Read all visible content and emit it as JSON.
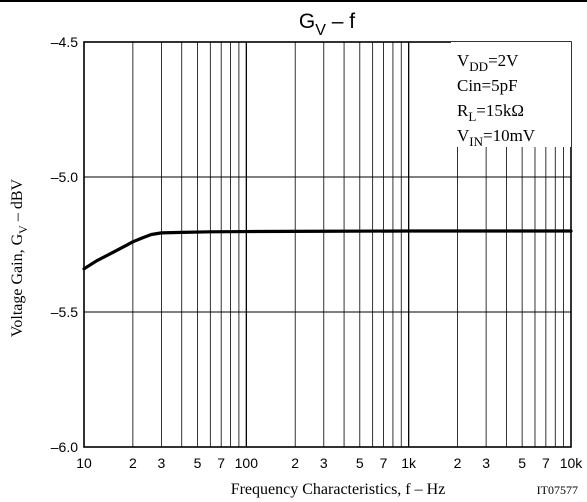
{
  "chart_data": {
    "type": "line",
    "title": {
      "main": "G",
      "sub": "V",
      "rest": " – f"
    },
    "xlabel": "Frequency Characteristics, f – Hz",
    "ylabel": {
      "pre": "Voltage Gain, G",
      "sub": "V",
      "post": " – dBV"
    },
    "x_scale": "log",
    "xlim": [
      10,
      10000
    ],
    "ylim": [
      -6.0,
      -4.5
    ],
    "grid": true,
    "x_ticks": [
      {
        "v": 10,
        "label": "10",
        "major": true
      },
      {
        "v": 20,
        "label": "2"
      },
      {
        "v": 30,
        "label": "3"
      },
      {
        "v": 40,
        "label": ""
      },
      {
        "v": 50,
        "label": "5"
      },
      {
        "v": 60,
        "label": ""
      },
      {
        "v": 70,
        "label": "7"
      },
      {
        "v": 80,
        "label": ""
      },
      {
        "v": 90,
        "label": ""
      },
      {
        "v": 100,
        "label": "100",
        "major": true
      },
      {
        "v": 200,
        "label": "2"
      },
      {
        "v": 300,
        "label": "3"
      },
      {
        "v": 400,
        "label": ""
      },
      {
        "v": 500,
        "label": "5"
      },
      {
        "v": 600,
        "label": ""
      },
      {
        "v": 700,
        "label": "7"
      },
      {
        "v": 800,
        "label": ""
      },
      {
        "v": 900,
        "label": ""
      },
      {
        "v": 1000,
        "label": "1k",
        "major": true
      },
      {
        "v": 2000,
        "label": "2"
      },
      {
        "v": 3000,
        "label": "3"
      },
      {
        "v": 4000,
        "label": ""
      },
      {
        "v": 5000,
        "label": "5"
      },
      {
        "v": 6000,
        "label": ""
      },
      {
        "v": 7000,
        "label": "7"
      },
      {
        "v": 8000,
        "label": ""
      },
      {
        "v": 9000,
        "label": ""
      },
      {
        "v": 10000,
        "label": "10k",
        "major": true
      }
    ],
    "y_ticks": [
      {
        "v": -4.5,
        "label": "–4.5"
      },
      {
        "v": -5.0,
        "label": "–5.0"
      },
      {
        "v": -5.5,
        "label": "–5.5"
      },
      {
        "v": -6.0,
        "label": "–6.0"
      }
    ],
    "series": [
      {
        "x": [
          10,
          12,
          15,
          18,
          20,
          23,
          26,
          30,
          40,
          60,
          100,
          300,
          1000,
          3000,
          10000
        ],
        "y": [
          -5.34,
          -5.31,
          -5.28,
          -5.255,
          -5.24,
          -5.225,
          -5.213,
          -5.207,
          -5.205,
          -5.203,
          -5.202,
          -5.201,
          -5.2,
          -5.2,
          -5.2
        ]
      }
    ],
    "annotations": {
      "conditions": [
        {
          "pre": "V",
          "sub": "DD",
          "post": "=2V"
        },
        {
          "pre": "Cin=5pF",
          "sub": "",
          "post": ""
        },
        {
          "pre": "R",
          "sub": "L",
          "post": "=15kΩ"
        },
        {
          "pre": "V",
          "sub": "IN",
          "post": "=10mV"
        }
      ],
      "code": "IT07577"
    }
  }
}
